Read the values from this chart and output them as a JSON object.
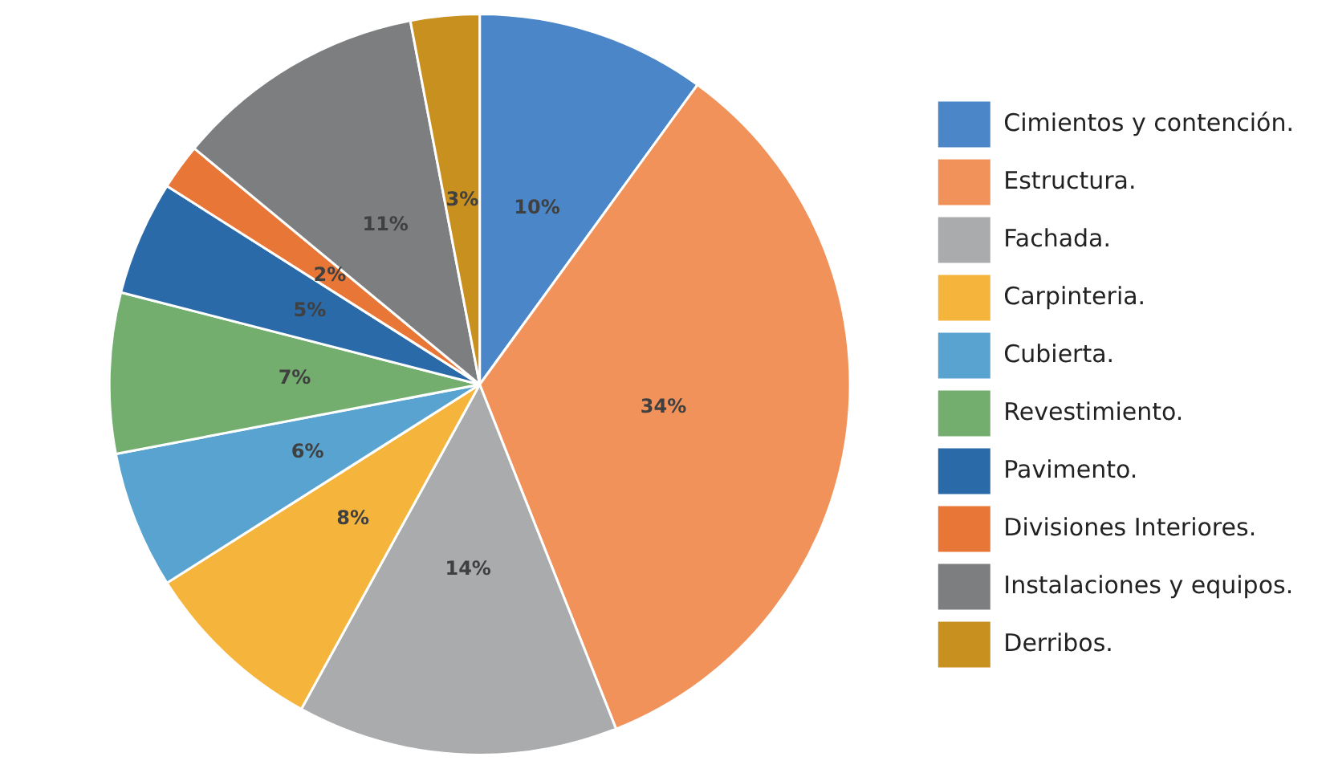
{
  "chart_data": {
    "type": "pie",
    "categories": [
      "Cimientos y contención.",
      "Estructura.",
      "Fachada.",
      "Carpinteria.",
      "Cubierta.",
      "Revestimiento.",
      "Pavimento.",
      "Divisiones Interiores.",
      "Instalaciones y equipos.",
      "Derribos."
    ],
    "values": [
      10,
      34,
      14,
      8,
      6,
      7,
      5,
      2,
      11,
      3
    ],
    "colors": [
      "#4a86c8",
      "#f0925a",
      "#a9abad",
      "#f5b43c",
      "#59a3d0",
      "#73ae6e",
      "#2a6aa8",
      "#e87636",
      "#7c7e80",
      "#c8901e"
    ],
    "value_labels": [
      "10%",
      "34%",
      "14%",
      "8%",
      "6%",
      "7%",
      "5%",
      "2%",
      "11%",
      "3%"
    ],
    "legend": "right"
  }
}
